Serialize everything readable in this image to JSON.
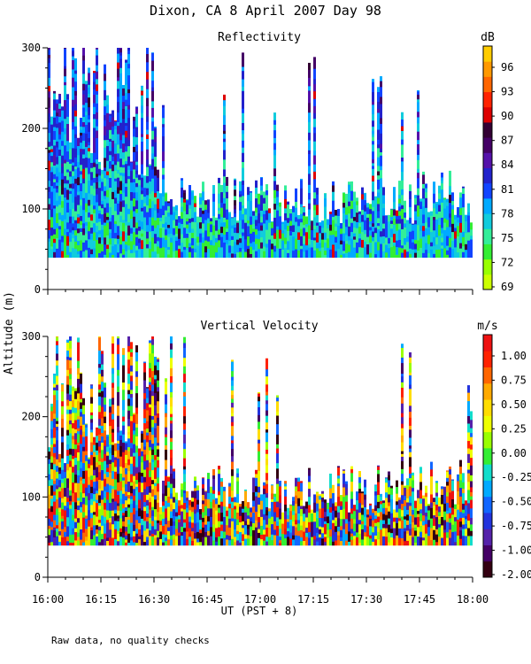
{
  "title": "Dixon, CA  8 April 2007  Day  98",
  "y_axis_label": "Altitude (m)",
  "x_axis_label": "UT  (PST + 8)",
  "footnote": "Raw data, no quality checks",
  "chart_data": [
    {
      "type": "heatmap",
      "title": "Reflectivity",
      "xlabel": "UT  (PST + 8)",
      "ylabel": "Altitude (m)",
      "xlim": [
        "16:00",
        "18:00"
      ],
      "x_ticks": [
        "16:00",
        "16:15",
        "16:30",
        "16:45",
        "17:00",
        "17:15",
        "17:30",
        "17:45",
        "18:00"
      ],
      "ylim": [
        0,
        300
      ],
      "y_ticks": [
        0,
        100,
        200,
        300
      ],
      "data_min_altitude": 40,
      "colorbar": {
        "units": "dB",
        "tick_labels": [
          "69",
          "72",
          "75",
          "78",
          "81",
          "84",
          "87",
          "90",
          "93",
          "96"
        ],
        "colors": [
          "#ccff00",
          "#99ff00",
          "#33ee33",
          "#33ee99",
          "#11ccdd",
          "#00aaff",
          "#1144ff",
          "#2222cc",
          "#5511aa",
          "#440066",
          "#330033",
          "#dd0000",
          "#ff2200",
          "#ff6600",
          "#ff9900",
          "#ffcc00"
        ]
      }
    },
    {
      "type": "heatmap",
      "title": "Vertical Velocity",
      "xlabel": "UT  (PST + 8)",
      "ylabel": "Altitude (m)",
      "xlim": [
        "16:00",
        "18:00"
      ],
      "x_ticks": [
        "16:00",
        "16:15",
        "16:30",
        "16:45",
        "17:00",
        "17:15",
        "17:30",
        "17:45",
        "18:00"
      ],
      "ylim": [
        0,
        300
      ],
      "y_ticks": [
        0,
        100,
        200,
        300
      ],
      "data_min_altitude": 40,
      "colorbar": {
        "units": "m/s",
        "tick_labels": [
          "-2.00",
          "-1.00",
          "-0.75",
          "-0.50",
          "-0.25",
          "0.00",
          "0.25",
          "0.50",
          "0.75",
          "1.00"
        ],
        "colors": [
          "#330011",
          "#440066",
          "#5522aa",
          "#2233dd",
          "#1166ff",
          "#00aaff",
          "#11ddcc",
          "#33ee33",
          "#99ff00",
          "#eeff00",
          "#ffdd00",
          "#ffaa00",
          "#ff6600",
          "#ff2200",
          "#ee1111"
        ]
      }
    }
  ]
}
